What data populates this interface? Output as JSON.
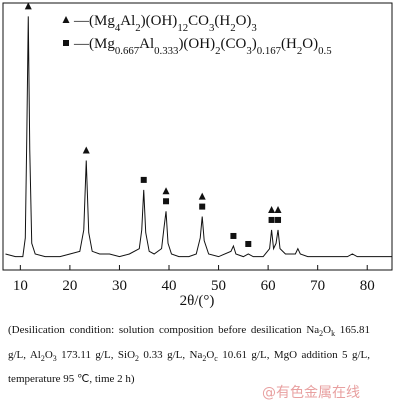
{
  "chart_data": {
    "type": "line",
    "x_label": "2θ/(°)",
    "x": [
      7,
      9,
      10.5,
      11,
      11.3,
      11.6,
      11.9,
      12.3,
      13,
      15,
      18,
      20,
      22,
      22.8,
      23.3,
      23.8,
      24.5,
      26,
      28,
      30,
      32,
      34,
      34.5,
      34.9,
      35.3,
      36,
      37,
      38.5,
      39,
      39.4,
      39.8,
      40.5,
      42,
      44,
      45.5,
      46.3,
      46.7,
      47.1,
      48,
      50,
      52.5,
      53,
      53.5,
      55,
      56,
      57,
      59,
      60.3,
      60.7,
      61.1,
      61.6,
      62,
      62.4,
      63.5,
      65.5,
      66,
      66.5,
      68,
      72,
      76,
      77,
      78,
      85
    ],
    "series": [
      {
        "color": "#111111",
        "values": [
          6,
          5,
          5,
          12,
          50,
          95,
          45,
          10,
          6,
          5,
          5,
          6,
          7,
          15,
          41,
          14,
          7,
          6,
          6,
          5,
          6,
          8,
          15,
          30,
          14,
          7,
          6,
          8,
          16,
          22,
          10,
          6,
          5,
          5,
          6,
          12,
          20,
          11,
          6,
          5,
          7,
          9,
          6,
          5,
          6,
          5,
          5,
          8,
          15,
          8,
          10,
          15,
          8,
          6,
          6,
          8,
          6,
          5,
          5,
          5,
          6,
          5,
          5
        ]
      }
    ],
    "phases": [
      {
        "name": "—(Mg4Al2)(OH)12CO3(H2O)3",
        "symbol": "triangle",
        "positions": [
          11.6,
          23.3,
          39.4,
          46.7,
          60.7,
          62
        ]
      },
      {
        "name": "—(Mg0.667Al0.333)(OH)2(CO3)0.167(H2O)0.5",
        "symbol": "square",
        "positions": [
          34.9,
          39.4,
          46.7,
          53,
          56,
          60.7,
          62
        ]
      }
    ],
    "xlim": [
      6.5,
      85
    ],
    "ylim": [
      0,
      100
    ],
    "xticks": [
      10,
      20,
      30,
      40,
      50,
      60,
      70,
      80
    ],
    "caption": "(Desilication condition: solution composition before desilication Na2Ok 165.81 g/L, Al2O3 173.11 g/L, SiO2 0.33 g/L, Na2Oc 10.61 g/L, MgO addition 5 g/L, temperature 95 ℃, time 2 h)",
    "watermark": "@有色金属在线"
  }
}
